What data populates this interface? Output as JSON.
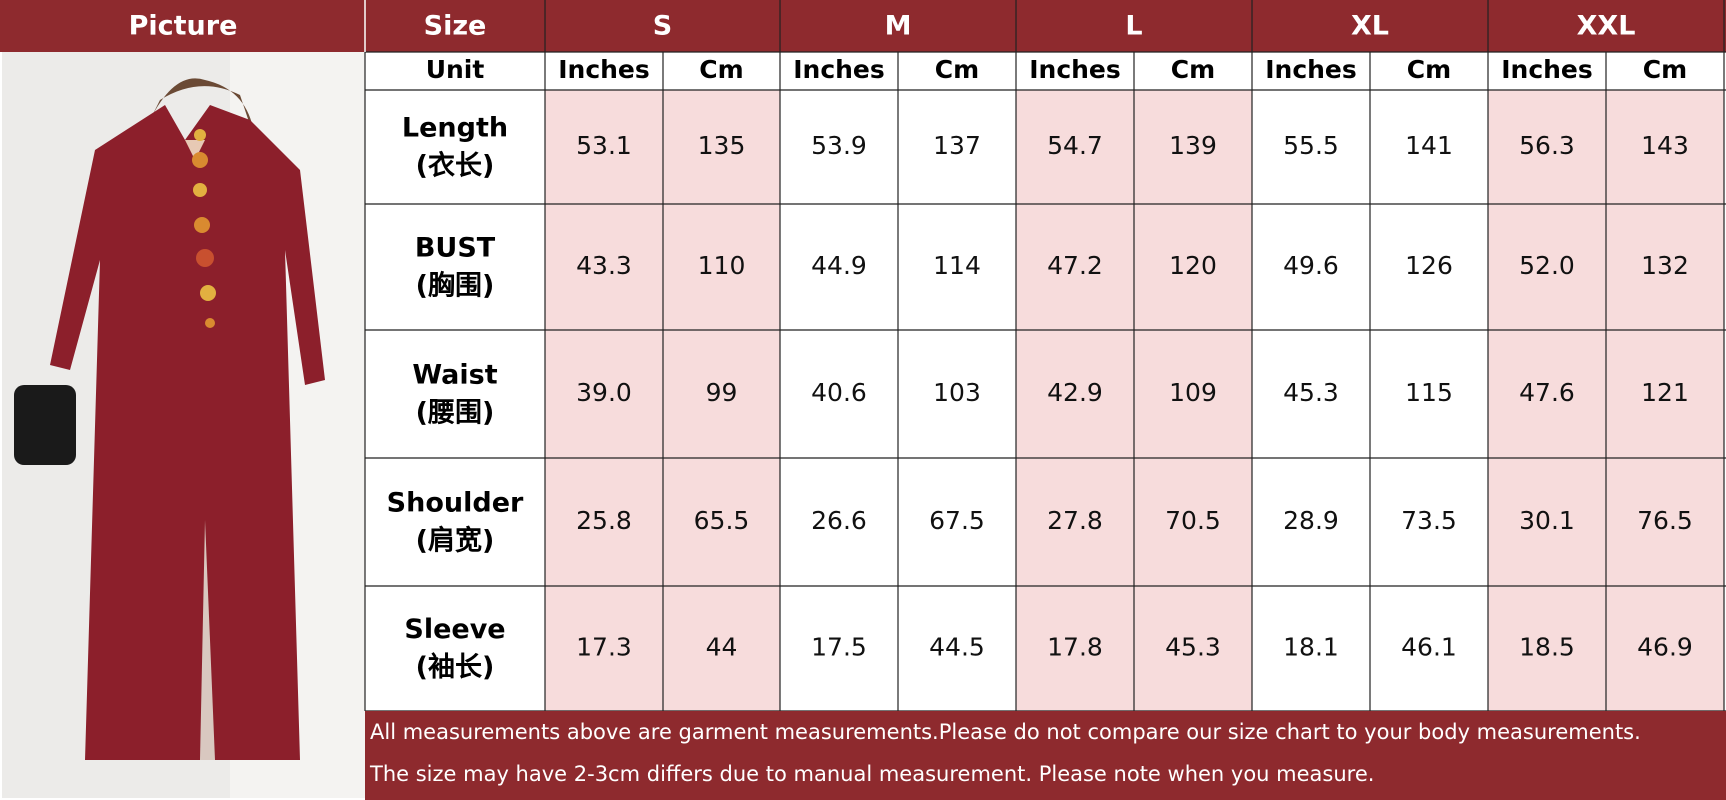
{
  "header": {
    "picture": "Picture",
    "size": "Size",
    "sizes": [
      "S",
      "M",
      "L",
      "XL",
      "XXL"
    ]
  },
  "unit_label": "Unit",
  "units": [
    "Inches",
    "Cm",
    "Inches",
    "Cm",
    "Inches",
    "Cm",
    "Inches",
    "Cm",
    "Inches",
    "Cm"
  ],
  "rows": [
    {
      "label": "Length",
      "label_cn": "(衣长)",
      "values": [
        "53.1",
        "135",
        "53.9",
        "137",
        "54.7",
        "139",
        "55.5",
        "141",
        "56.3",
        "143"
      ]
    },
    {
      "label": "BUST",
      "label_cn": "(胸围)",
      "values": [
        "43.3",
        "110",
        "44.9",
        "114",
        "47.2",
        "120",
        "49.6",
        "126",
        "52.0",
        "132"
      ]
    },
    {
      "label": "Waist",
      "label_cn": "(腰围)",
      "values": [
        "39.0",
        "99",
        "40.6",
        "103",
        "42.9",
        "109",
        "45.3",
        "115",
        "47.6",
        "121"
      ]
    },
    {
      "label": "Shoulder",
      "label_cn": "(肩宽)",
      "values": [
        "25.8",
        "65.5",
        "26.6",
        "67.5",
        "27.8",
        "70.5",
        "28.9",
        "73.5",
        "30.1",
        "76.5"
      ]
    },
    {
      "label": "Sleeve",
      "label_cn": "(袖长)",
      "values": [
        "17.3",
        "44",
        "17.5",
        "44.5",
        "17.8",
        "45.3",
        "18.1",
        "46.1",
        "18.5",
        "46.9"
      ]
    }
  ],
  "notes": [
    "All measurements above are garment measurements.Please do not compare our size chart to your body measurements.",
    "The size may have 2-3cm differs due to manual measurement. Please note when you measure."
  ]
}
